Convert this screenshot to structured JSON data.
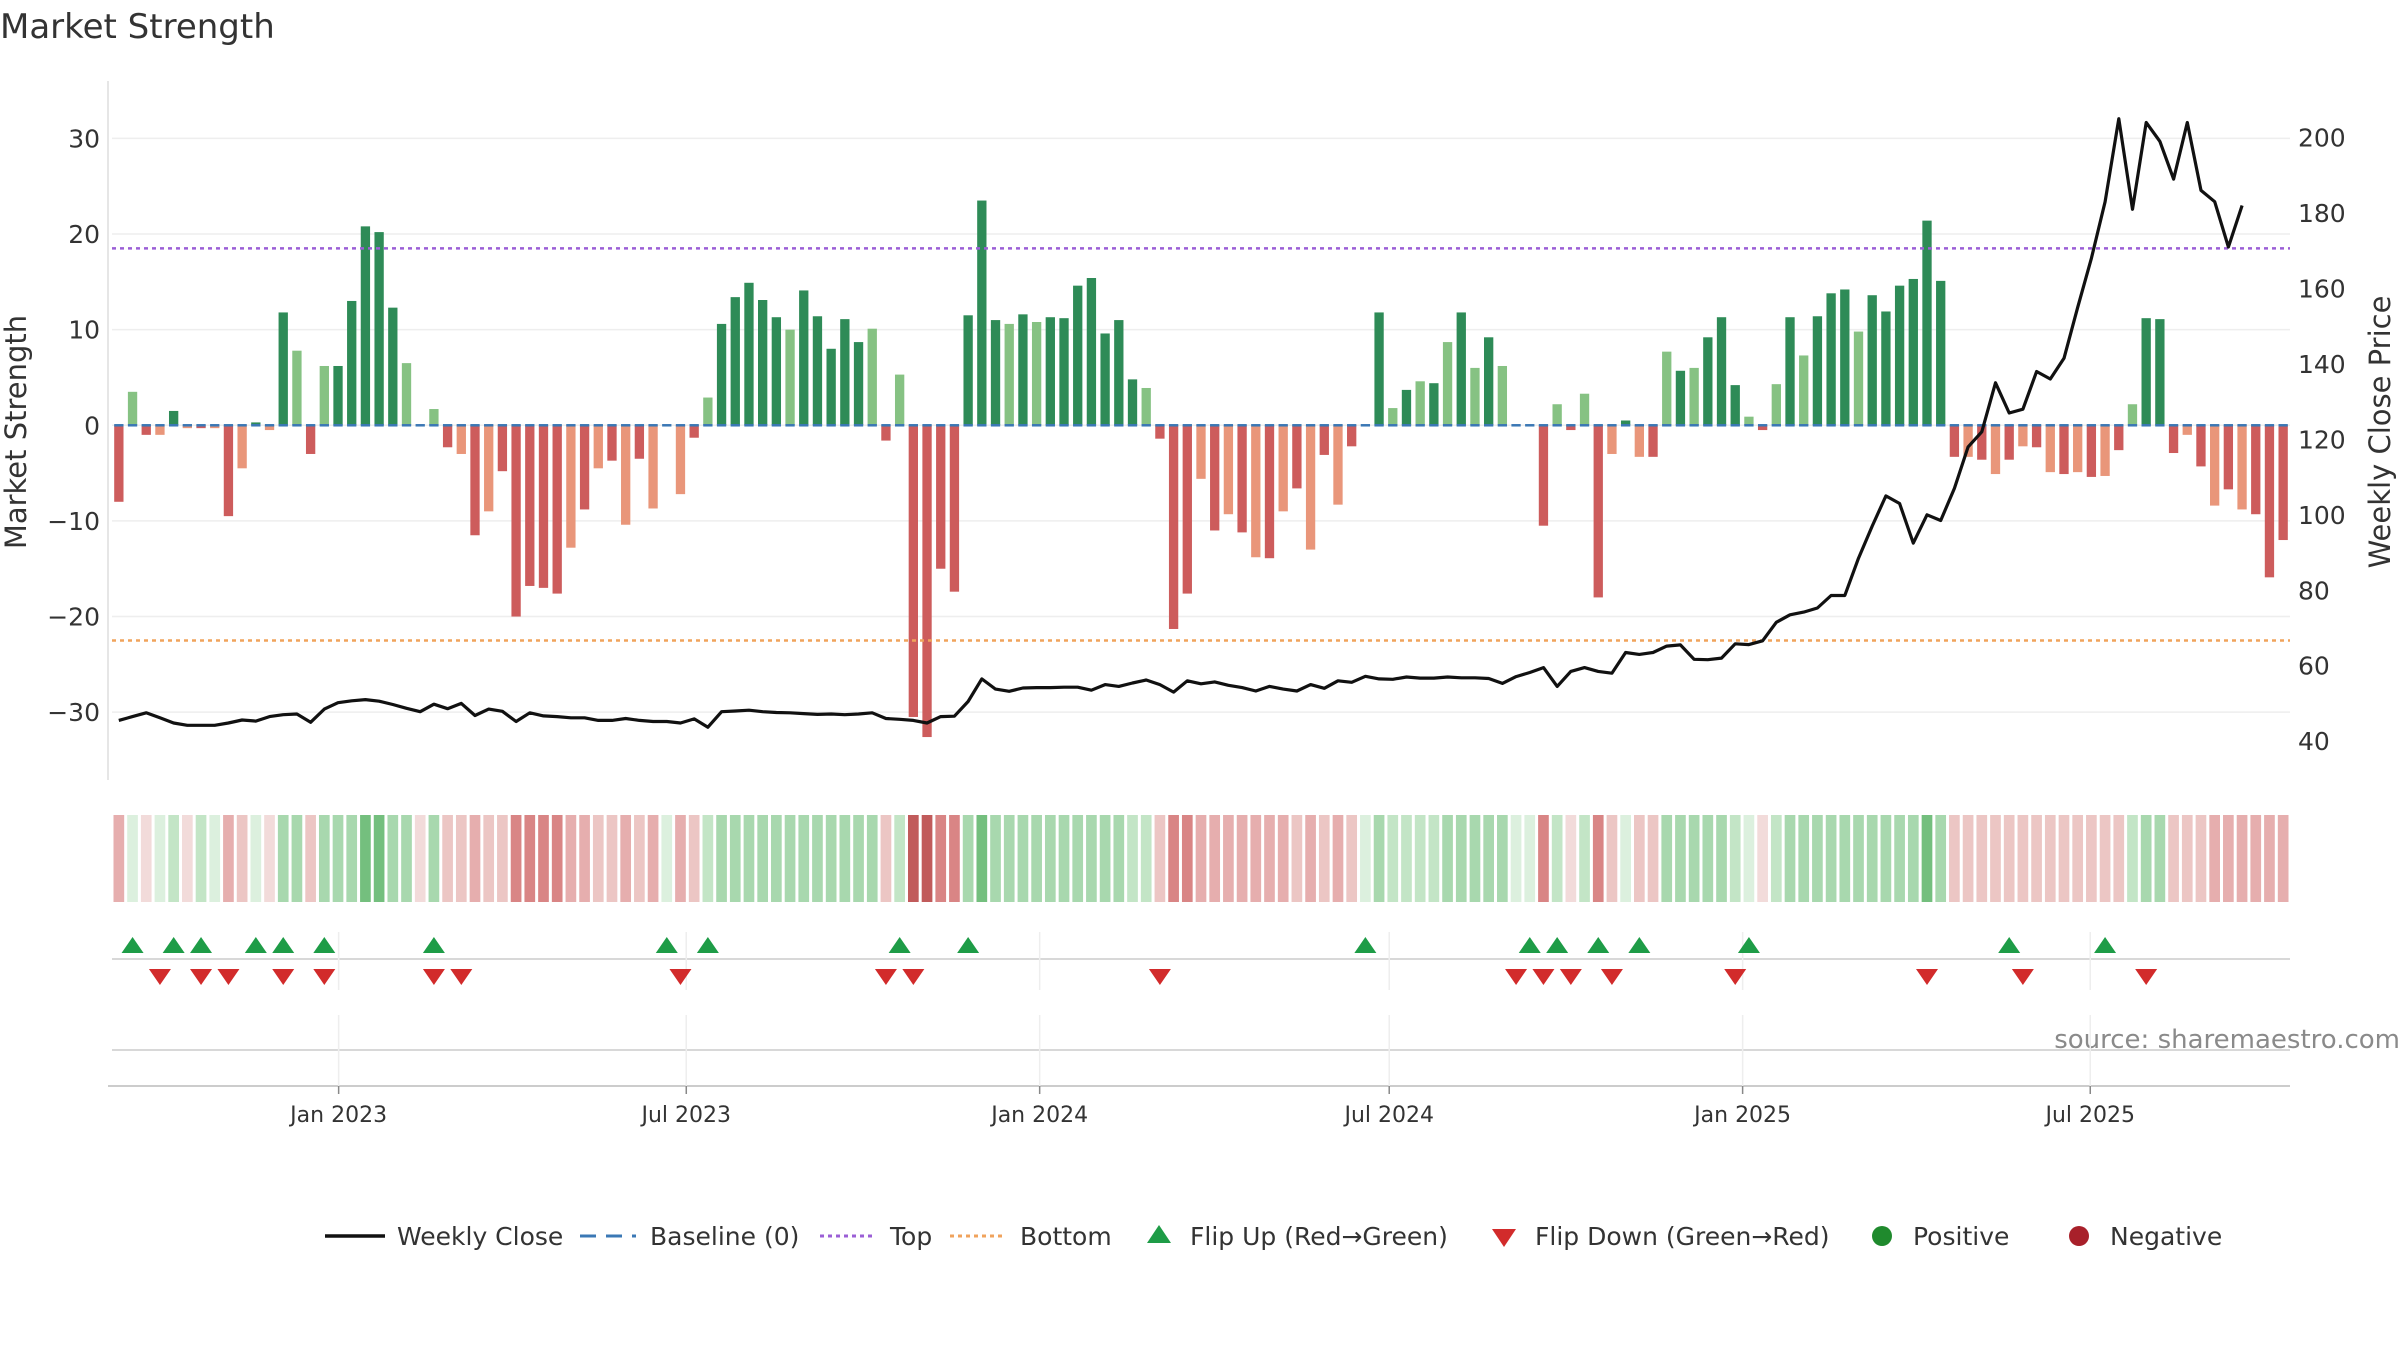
{
  "chart_data": {
    "type": "bar",
    "title": "Market Strength",
    "source": "source: sharemaestro.com",
    "ylabel": "Market Strength",
    "y2label": "Weekly Close Price",
    "ylim": [
      -35,
      36
    ],
    "y2lim": [
      35,
      215
    ],
    "yticks": [
      -30,
      -20,
      -10,
      0,
      10,
      20,
      30
    ],
    "ytick_labels": [
      "−30",
      "−20",
      "−10",
      "0",
      "10",
      "20",
      "30"
    ],
    "y2ticks": [
      40,
      60,
      80,
      100,
      120,
      140,
      160,
      180,
      200
    ],
    "y2tick_labels": [
      "40",
      "60",
      "80",
      "100",
      "120",
      "140",
      "160",
      "180",
      "200"
    ],
    "x_start": "2022-09-05",
    "x_end": "2025-10-13",
    "xticks": [
      {
        "date": "2023-01-01",
        "label": "Jan 2023"
      },
      {
        "date": "2023-07-01",
        "label": "Jul 2023"
      },
      {
        "date": "2024-01-01",
        "label": "Jan 2024"
      },
      {
        "date": "2024-07-01",
        "label": "Jul 2024"
      },
      {
        "date": "2025-01-01",
        "label": "Jan 2025"
      },
      {
        "date": "2025-07-01",
        "label": "Jul 2025"
      }
    ],
    "top_line": 18.5,
    "bottom_line": -22.5,
    "strength": [
      -8,
      3.5,
      -1,
      -1,
      1.5,
      -0.3,
      -0.3,
      -0.3,
      -9.5,
      -4.5,
      0.3,
      -0.5,
      11.8,
      7.8,
      -3,
      6.2,
      6.2,
      13,
      20.8,
      20.2,
      12.3,
      6.5,
      0,
      1.7,
      -2.3,
      -3,
      -11.5,
      -9,
      -4.8,
      -20,
      -16.8,
      -17,
      -17.6,
      -12.8,
      -8.8,
      -4.5,
      -3.7,
      -10.4,
      -3.5,
      -8.7,
      0,
      -7.2,
      -1.3,
      2.9,
      10.6,
      13.4,
      14.9,
      13.1,
      11.3,
      10,
      14.1,
      11.4,
      8,
      11.1,
      8.7,
      10.1,
      -1.6,
      5.3,
      -30.5,
      -32.6,
      -15,
      -17.4,
      11.5,
      23.5,
      11,
      10.6,
      11.6,
      10.8,
      11.3,
      11.2,
      14.6,
      15.4,
      9.6,
      11,
      4.8,
      3.9,
      -1.4,
      -21.3,
      -17.6,
      -5.6,
      -11,
      -9.3,
      -11.2,
      -13.8,
      -13.9,
      -9,
      -6.6,
      -13,
      -3.1,
      -8.3,
      -2.2,
      0,
      11.8,
      1.8,
      3.7,
      4.6,
      4.4,
      8.7,
      11.8,
      6,
      9.2,
      6.2,
      0,
      0,
      -10.5,
      2.2,
      -0.5,
      3.3,
      -18,
      -3,
      0.5,
      -3.3,
      -3.3,
      7.7,
      5.7,
      6,
      9.2,
      11.3,
      4.2,
      0.9,
      -0.5,
      4.3,
      11.3,
      7.3,
      11.4,
      13.8,
      14.2,
      9.8,
      13.6,
      11.9,
      14.6,
      15.3,
      21.4,
      15.1,
      -3.3,
      -3.3,
      -3.6,
      -5.1,
      -3.6,
      -2.2,
      -2.3,
      -4.9,
      -5.1,
      -4.9,
      -5.4,
      -5.3,
      -2.6,
      2.2,
      11.2,
      11.1,
      -2.9,
      -1,
      -4.3,
      -8.4,
      -6.7,
      -8.8,
      -9.3,
      -15.9,
      -12
    ],
    "weekly_close": [
      45.5,
      46.5,
      47.5,
      46.2,
      44.8,
      44.2,
      44.2,
      44.2,
      44.8,
      45.6,
      45.3,
      46.5,
      47,
      47.2,
      45,
      48.5,
      50.2,
      50.7,
      51,
      50.6,
      49.7,
      48.7,
      47.8,
      49.8,
      48.6,
      50,
      46.8,
      48.5,
      47.9,
      45.2,
      47.5,
      46.7,
      46.5,
      46.2,
      46.2,
      45.5,
      45.5,
      46,
      45.5,
      45.2,
      45.2,
      44.8,
      45.9,
      43.7,
      47.8,
      48,
      48.2,
      47.8,
      47.6,
      47.5,
      47.3,
      47.1,
      47.2,
      47,
      47.2,
      47.5,
      46,
      45.8,
      45.5,
      44.8,
      46.5,
      46.6,
      50.5,
      56.5,
      53.8,
      53.2,
      54.1,
      54.2,
      54.2,
      54.3,
      54.3,
      53.5,
      55,
      54.5,
      55.4,
      56.2,
      55,
      53,
      56,
      55.2,
      55.7,
      54.8,
      54.2,
      53.3,
      54.5,
      53.8,
      53.3,
      55,
      54,
      56,
      55.6,
      57.2,
      56.5,
      56.4,
      57,
      56.7,
      56.7,
      57,
      56.8,
      56.8,
      56.6,
      55.3,
      57.1,
      58.2,
      59.5,
      54.5,
      58.5,
      59.5,
      58.5,
      58,
      63.5,
      63,
      63.5,
      65.2,
      65.5,
      61.7,
      61.6,
      62,
      65.8,
      65.6,
      66.6,
      71.5,
      73.5,
      74.2,
      75.3,
      78.6,
      78.6,
      88.5,
      97,
      105,
      103,
      92.5,
      100,
      98.5,
      107,
      118,
      122,
      135,
      127,
      128,
      138,
      136,
      141.5,
      155,
      168,
      183,
      205,
      181,
      204,
      199,
      189,
      204,
      186,
      183,
      171,
      182
    ],
    "strip": [
      "r2",
      "g4",
      "r4",
      "g4",
      "g3",
      "r4",
      "g3",
      "g4",
      "r2",
      "r3",
      "g4",
      "r4",
      "g2",
      "g2",
      "r3",
      "g2",
      "g2",
      "g2",
      "g1",
      "g1",
      "g2",
      "g2",
      "r4",
      "g2",
      "r3",
      "r3",
      "r2",
      "r3",
      "r3",
      "r1",
      "r1",
      "r1",
      "r1",
      "r2",
      "r2",
      "r3",
      "r3",
      "r2",
      "r3",
      "r2",
      "g4",
      "r2",
      "r3",
      "g3",
      "g2",
      "g2",
      "g2",
      "g2",
      "g2",
      "g2",
      "g2",
      "g2",
      "g2",
      "g2",
      "g2",
      "g2",
      "r3",
      "g3",
      "r0",
      "r0",
      "r1",
      "r1",
      "g2",
      "g1",
      "g2",
      "g2",
      "g2",
      "g2",
      "g2",
      "g2",
      "g2",
      "g2",
      "g2",
      "g2",
      "g3",
      "g3",
      "r3",
      "r1",
      "r1",
      "r2",
      "r2",
      "r2",
      "r2",
      "r2",
      "r2",
      "r2",
      "r3",
      "r2",
      "r3",
      "r2",
      "r3",
      "g4",
      "g2",
      "g3",
      "g3",
      "g3",
      "g3",
      "g2",
      "g2",
      "g2",
      "g2",
      "g2",
      "g4",
      "g4",
      "r1",
      "g3",
      "r4",
      "g3",
      "r1",
      "r3",
      "g4",
      "r3",
      "r3",
      "g2",
      "g2",
      "g2",
      "g2",
      "g2",
      "g3",
      "g4",
      "r4",
      "g3",
      "g2",
      "g2",
      "g2",
      "g2",
      "g2",
      "g2",
      "g2",
      "g2",
      "g2",
      "g2",
      "g1",
      "g2",
      "r3",
      "r3",
      "r3",
      "r3",
      "r3",
      "r3",
      "r3",
      "r3",
      "r3",
      "r3",
      "r3",
      "r3",
      "r3",
      "g3",
      "g2",
      "g2",
      "r3",
      "r3",
      "r3",
      "r2",
      "r2",
      "r2",
      "r2",
      "r2",
      "r2"
    ],
    "flip_up_weeks": [
      1,
      4,
      6,
      10,
      12,
      15,
      23,
      40,
      43,
      57,
      62,
      91,
      103,
      105,
      108,
      111,
      119,
      138,
      145
    ],
    "flip_down_weeks": [
      3,
      6,
      8,
      12,
      15,
      23,
      25,
      41,
      56,
      58,
      76,
      102,
      104,
      106,
      109,
      118,
      132,
      139,
      148
    ],
    "legend": [
      {
        "label": "Weekly Close",
        "marker": "line",
        "color": "#111111"
      },
      {
        "label": "Baseline (0)",
        "marker": "dash",
        "color": "#3b78b5"
      },
      {
        "label": "Top",
        "marker": "dot",
        "color": "#9b5fd6"
      },
      {
        "label": "Bottom",
        "marker": "dot",
        "color": "#f0a35c"
      },
      {
        "label": "Flip Up (Red→Green)",
        "marker": "triangle-up",
        "color": "#1e9c47"
      },
      {
        "label": "Flip Down (Green→Red)",
        "marker": "triangle-down",
        "color": "#d22b2b"
      },
      {
        "label": "Positive",
        "marker": "circle",
        "color": "#1f8a2d"
      },
      {
        "label": "Negative",
        "marker": "circle",
        "color": "#a8202a"
      }
    ],
    "colors": {
      "strong_pos": "#2e8b57",
      "weak_pos": "#86c283",
      "strong_neg": "#cd5c5c",
      "weak_neg": "#e9967a",
      "weekly_close": "#111111",
      "baseline": "#3b78b5",
      "top": "#9b5fd6",
      "bottom": "#f0a35c",
      "flip_up": "#1e9c47",
      "flip_down": "#d22b2b",
      "strip_r0": "#c15b5b",
      "strip_r1": "#d98585",
      "strip_r2": "#e6aeae",
      "strip_r3": "#ecc6c4",
      "strip_r4": "#f2dbda",
      "strip_g1": "#74bf7e",
      "strip_g2": "#a8d8ae",
      "strip_g3": "#c3e5c6",
      "strip_g4": "#dcf0de"
    },
    "grid": true,
    "legend_position": "bottom"
  }
}
